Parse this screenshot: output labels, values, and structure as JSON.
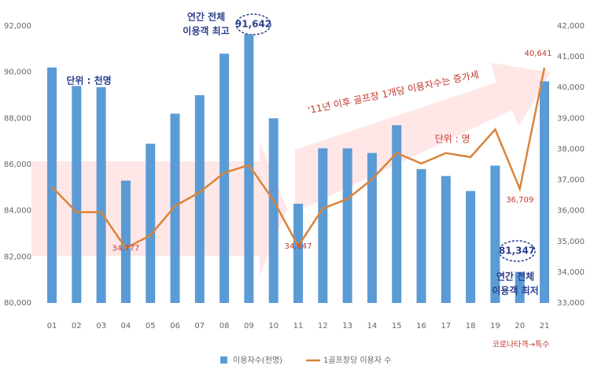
{
  "chart_data": {
    "type": "bar_line",
    "categories": [
      "01",
      "02",
      "03",
      "04",
      "05",
      "06",
      "07",
      "08",
      "09",
      "10",
      "11",
      "12",
      "13",
      "14",
      "15",
      "16",
      "17",
      "18",
      "19",
      "20",
      "21"
    ],
    "series": [
      {
        "name": "이용자수(천명)",
        "color": "#5b9bd5",
        "type": "bar",
        "values": [
          90200,
          89400,
          89350,
          85300,
          86900,
          88200,
          89000,
          90800,
          91642,
          88000,
          84300,
          86700,
          86700,
          86500,
          87700,
          85800,
          85500,
          84850,
          85950,
          81347,
          89600
        ],
        "value_labels": [
          null,
          null,
          null,
          null,
          null,
          null,
          null,
          null,
          "91,642",
          null,
          null,
          null,
          null,
          null,
          null,
          null,
          null,
          null,
          null,
          "81,347",
          null
        ]
      },
      {
        "name": "1골프장당 이용자 수",
        "color": "#d9843b",
        "type": "line",
        "axis": "y2",
        "values": [
          36770,
          35950,
          35950,
          34777,
          35200,
          36150,
          36600,
          37230,
          37480,
          36330,
          34847,
          36070,
          36380,
          37020,
          37870,
          37530,
          37870,
          37740,
          38640,
          36709,
          40641
        ],
        "value_labels": [
          null,
          null,
          null,
          "34,777",
          null,
          null,
          null,
          null,
          null,
          null,
          "34,847",
          null,
          null,
          null,
          null,
          null,
          null,
          null,
          null,
          "36,709",
          "40,641"
        ]
      }
    ],
    "ylim": [
      80000,
      92000
    ],
    "yticks": [
      {
        "value": 80000,
        "label": "80,000"
      },
      {
        "value": 82000,
        "label": "82,000"
      },
      {
        "value": 84000,
        "label": "84,000"
      },
      {
        "value": 86000,
        "label": "86,000"
      },
      {
        "value": 88000,
        "label": "88,000"
      },
      {
        "value": 90000,
        "label": "90,000"
      },
      {
        "value": 92000,
        "label": "92,000"
      }
    ],
    "y2lim": [
      33000,
      42000
    ],
    "y2ticks": [
      {
        "value": 33000,
        "label": "33,000"
      },
      {
        "value": 34000,
        "label": "34,000"
      },
      {
        "value": 35000,
        "label": "35,000"
      },
      {
        "value": 36000,
        "label": "36,000"
      },
      {
        "value": 37000,
        "label": "37,000"
      },
      {
        "value": 38000,
        "label": "38,000"
      },
      {
        "value": 39000,
        "label": "39,000"
      },
      {
        "value": 40000,
        "label": "40,000"
      },
      {
        "value": 41000,
        "label": "41,000"
      },
      {
        "value": 42000,
        "label": "42,000"
      }
    ],
    "annotations": [
      {
        "lines": [
          "연간 전체",
          "이용객 최고"
        ]
      },
      {
        "lines": [
          "단위 : 천명"
        ]
      },
      {
        "lines": [
          "'11년 이후 골프장 1개당 이용자수는 증가세"
        ]
      },
      {
        "lines": [
          "단위 : 명"
        ]
      },
      {
        "lines": [
          "연간 전체",
          "이용객 최저"
        ]
      },
      {
        "lines": [
          "코로나타격→특수"
        ]
      }
    ]
  }
}
